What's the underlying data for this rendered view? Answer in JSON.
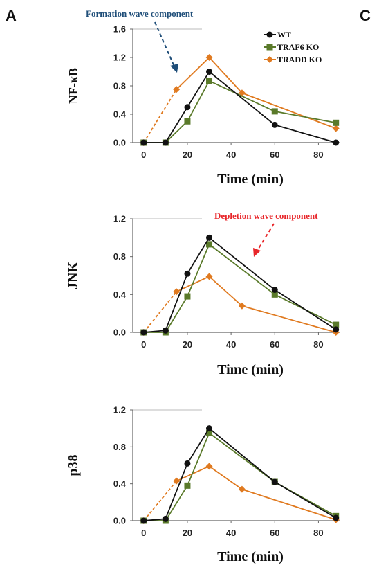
{
  "panel_labels": {
    "left": "A",
    "right": "C"
  },
  "annotations": {
    "formation": {
      "text": "Formation wave component",
      "color": "#1f4e79"
    },
    "depletion": {
      "text": "Depletion wave component",
      "color": "#e8262a"
    }
  },
  "colors": {
    "WT": "#111111",
    "TRAF6 KO": "#5a7a2a",
    "TRADD KO": "#e07a20"
  },
  "chart_data": [
    {
      "type": "line",
      "ylabel": "NF-κB",
      "xlabel": "Time (min)",
      "xlim": [
        -5,
        90
      ],
      "ylim": [
        0,
        1.6
      ],
      "xticks": [
        0,
        20,
        40,
        60,
        80
      ],
      "yticks": [
        "0.0",
        "0.4",
        "0.8",
        "1.2",
        "1.6"
      ],
      "legend": "top-right",
      "series": [
        {
          "name": "WT",
          "marker": "circle",
          "x": [
            0,
            10,
            20,
            30,
            60,
            88
          ],
          "values": [
            0,
            0,
            0.5,
            1.0,
            0.25,
            0
          ]
        },
        {
          "name": "TRAF6 KO",
          "marker": "square",
          "x": [
            0,
            10,
            20,
            30,
            60,
            88
          ],
          "values": [
            0,
            0,
            0.3,
            0.87,
            0.44,
            0.28
          ]
        },
        {
          "name": "TRADD KO",
          "marker": "diamond",
          "x": [
            0,
            15,
            30,
            45,
            88
          ],
          "values": [
            0,
            0.75,
            1.2,
            0.7,
            0.2
          ],
          "dashed_first_segment": true
        }
      ]
    },
    {
      "type": "line",
      "ylabel": "JNK",
      "xlabel": "Time (min)",
      "xlim": [
        -5,
        90
      ],
      "ylim": [
        0,
        1.2
      ],
      "xticks": [
        0,
        20,
        40,
        60,
        80
      ],
      "yticks": [
        "0.0",
        "0.4",
        "0.8",
        "1.2"
      ],
      "series": [
        {
          "name": "WT",
          "marker": "circle",
          "x": [
            0,
            10,
            20,
            30,
            60,
            88
          ],
          "values": [
            0,
            0.02,
            0.62,
            1.0,
            0.45,
            0.03
          ]
        },
        {
          "name": "TRAF6 KO",
          "marker": "square",
          "x": [
            0,
            10,
            20,
            30,
            60,
            88
          ],
          "values": [
            0,
            0,
            0.38,
            0.93,
            0.4,
            0.08
          ]
        },
        {
          "name": "TRADD KO",
          "marker": "diamond",
          "x": [
            0,
            15,
            30,
            45,
            88
          ],
          "values": [
            0,
            0.43,
            0.59,
            0.28,
            0
          ],
          "dashed_first_segment": true
        }
      ]
    },
    {
      "type": "line",
      "ylabel": "p38",
      "xlabel": "Time (min)",
      "xlim": [
        -5,
        90
      ],
      "ylim": [
        0,
        1.2
      ],
      "xticks": [
        0,
        20,
        40,
        60,
        80
      ],
      "yticks": [
        "0.0",
        "0.4",
        "0.8",
        "1.2"
      ],
      "series": [
        {
          "name": "WT",
          "marker": "circle",
          "x": [
            0,
            10,
            20,
            30,
            60,
            88
          ],
          "values": [
            0,
            0.02,
            0.62,
            1.0,
            0.42,
            0.03
          ]
        },
        {
          "name": "TRAF6 KO",
          "marker": "square",
          "x": [
            0,
            10,
            20,
            30,
            60,
            88
          ],
          "values": [
            0,
            0,
            0.38,
            0.95,
            0.42,
            0.05
          ]
        },
        {
          "name": "TRADD KO",
          "marker": "diamond",
          "x": [
            0,
            15,
            30,
            45,
            88
          ],
          "values": [
            0,
            0.43,
            0.59,
            0.34,
            0.01
          ],
          "dashed_first_segment": true
        }
      ]
    }
  ]
}
